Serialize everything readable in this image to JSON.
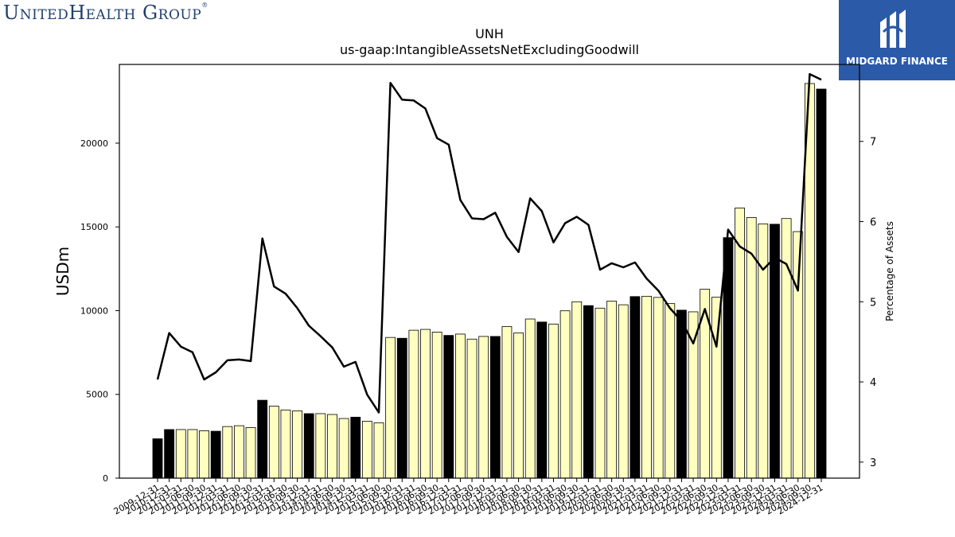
{
  "logos": {
    "left_text": "UnitedHealth Group",
    "left_mark": "®",
    "right_text": "MIDGARD FINANCE",
    "right_icon": "midgard-logo-icon"
  },
  "colors": {
    "bar_light": "#ffffc0",
    "bar_dark": "#000000",
    "line": "#000000",
    "logo_blue": "#2b5aa8",
    "logo_text": "#1f3f6e"
  },
  "chart_data": {
    "type": "bar",
    "title": "UNH",
    "subtitle": "us-gaap:IntangibleAssetsNetExcludingGoodwill",
    "ylabel": "USDm",
    "y2label": "Percentage of Assets",
    "ylim": [
      0,
      24700
    ],
    "y2lim": [
      2.8,
      7.96
    ],
    "yticks": [
      0,
      5000,
      10000,
      15000,
      20000
    ],
    "y2ticks": [
      3,
      4,
      5,
      6,
      7
    ],
    "grid": false,
    "legend": "none",
    "categories": [
      "2009-12-31",
      "2010-12-31",
      "2011-03-31",
      "2011-06-30",
      "2011-09-30",
      "2011-12-31",
      "2012-03-31",
      "2012-06-30",
      "2012-09-30",
      "2012-12-31",
      "2013-03-31",
      "2013-06-30",
      "2013-09-30",
      "2013-12-31",
      "2014-03-31",
      "2014-06-30",
      "2014-09-30",
      "2014-12-31",
      "2015-03-31",
      "2015-06-30",
      "2015-09-30",
      "2015-12-31",
      "2016-03-31",
      "2016-06-30",
      "2016-09-30",
      "2016-12-31",
      "2017-03-31",
      "2017-06-30",
      "2017-09-30",
      "2017-12-31",
      "2018-03-31",
      "2018-06-30",
      "2018-09-30",
      "2018-12-31",
      "2019-03-31",
      "2019-06-30",
      "2019-09-30",
      "2019-12-31",
      "2020-03-31",
      "2020-06-30",
      "2020-09-30",
      "2020-12-31",
      "2021-03-31",
      "2021-06-30",
      "2021-09-30",
      "2021-12-31",
      "2022-03-31",
      "2022-06-30",
      "2022-09-30",
      "2022-12-31",
      "2023-03-31",
      "2023-06-30",
      "2023-09-30",
      "2023-12-31",
      "2024-03-31",
      "2024-06-30",
      "2024-09-30",
      "2024-12-31"
    ],
    "bar_style": [
      "dark",
      "dark",
      "light",
      "light",
      "light",
      "dark",
      "light",
      "light",
      "light",
      "dark",
      "light",
      "light",
      "light",
      "dark",
      "light",
      "light",
      "light",
      "dark",
      "light",
      "light",
      "light",
      "dark",
      "light",
      "light",
      "light",
      "dark",
      "light",
      "light",
      "light",
      "dark",
      "light",
      "light",
      "light",
      "dark",
      "light",
      "light",
      "light",
      "dark",
      "light",
      "light",
      "light",
      "dark",
      "light",
      "light",
      "light",
      "dark",
      "light",
      "light",
      "light",
      "dark",
      "light",
      "light",
      "light",
      "dark",
      "light",
      "light",
      "light",
      "dark"
    ],
    "series": [
      {
        "axis": "left",
        "kind": "bar",
        "values": [
          2350,
          2900,
          2900,
          2900,
          2830,
          2800,
          3080,
          3130,
          3020,
          4650,
          4300,
          4070,
          4020,
          3850,
          3850,
          3800,
          3560,
          3640,
          3400,
          3300,
          8400,
          8350,
          8830,
          8880,
          8720,
          8520,
          8600,
          8300,
          8460,
          8460,
          9050,
          8670,
          9500,
          9320,
          9200,
          9990,
          10530,
          10300,
          10150,
          10570,
          10350,
          10840,
          10860,
          10790,
          10420,
          10030,
          9930,
          11280,
          10800,
          14360,
          16130,
          15560,
          15180,
          15160,
          15500,
          14720,
          23560,
          23230
        ]
      },
      {
        "axis": "right",
        "kind": "line",
        "values": [
          4.03,
          4.61,
          4.44,
          4.37,
          4.03,
          4.12,
          4.27,
          4.28,
          4.26,
          5.79,
          5.19,
          5.1,
          4.92,
          4.7,
          4.57,
          4.43,
          4.19,
          4.25,
          3.84,
          3.62,
          7.73,
          7.52,
          7.51,
          7.41,
          7.04,
          6.96,
          6.27,
          6.04,
          6.03,
          6.11,
          5.81,
          5.62,
          6.29,
          6.13,
          5.74,
          5.98,
          6.06,
          5.96,
          5.4,
          5.48,
          5.43,
          5.49,
          5.29,
          5.14,
          4.92,
          4.76,
          4.48,
          4.91,
          4.44,
          5.9,
          5.69,
          5.6,
          5.4,
          5.55,
          5.47,
          5.14,
          7.84,
          7.77
        ]
      }
    ]
  }
}
